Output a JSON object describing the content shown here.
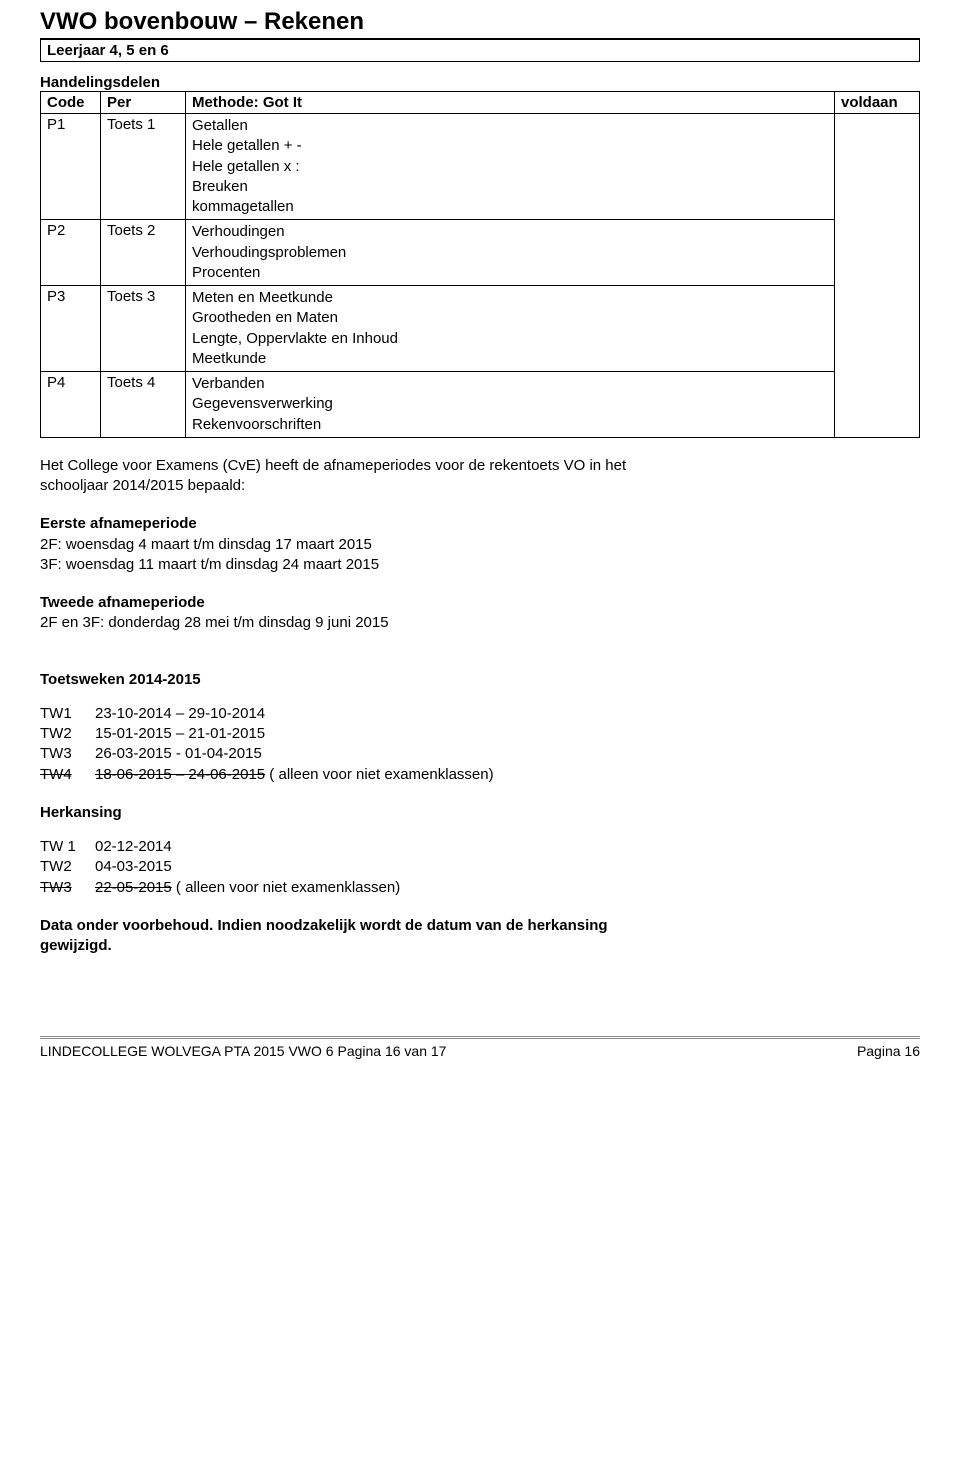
{
  "title": "VWO bovenbouw – Rekenen",
  "subtitle": "Leerjaar 4, 5 en 6",
  "handelingsdelen_heading": "Handelingsdelen",
  "table": {
    "headers": {
      "code": "Code",
      "per": "Per",
      "method": "Methode: Got It",
      "voldaan": "voldaan"
    },
    "rows": [
      {
        "code": "P1",
        "per": "Toets 1",
        "lines": [
          "Getallen",
          "Hele getallen + -",
          "Hele getallen x :",
          "Breuken",
          "kommagetallen"
        ]
      },
      {
        "code": "P2",
        "per": "Toets 2",
        "lines": [
          "Verhoudingen",
          "Verhoudingsproblemen",
          "Procenten"
        ]
      },
      {
        "code": "P3",
        "per": "Toets 3",
        "lines": [
          "Meten en Meetkunde",
          "Grootheden en Maten",
          "Lengte, Oppervlakte en Inhoud",
          "Meetkunde"
        ]
      },
      {
        "code": "P4",
        "per": "Toets 4",
        "lines": [
          "Verbanden",
          "Gegevensverwerking",
          "Rekenvoorschriften"
        ]
      }
    ]
  },
  "intro_para": [
    "Het College voor Examens (CvE) heeft de afnameperiodes voor de rekentoets VO in het",
    "schooljaar 2014/2015 bepaald:"
  ],
  "eerste": {
    "heading": "Eerste afnameperiode",
    "line1": "2F: woensdag 4 maart t/m dinsdag 17 maart 2015",
    "line2": "3F: woensdag 11 maart t/m dinsdag 24 maart 2015"
  },
  "tweede": {
    "heading": "Tweede afnameperiode",
    "line1": "2F en 3F: donderdag 28 mei t/m dinsdag 9 juni 2015"
  },
  "toetsweken": {
    "heading": "Toetsweken 2014-2015",
    "rows": [
      {
        "label": "TW1",
        "text": "23-10-2014 – 29-10-2014",
        "strike": false
      },
      {
        "label": "TW2",
        "text": "15-01-2015 – 21-01-2015",
        "strike": false
      },
      {
        "label": "TW3",
        "text": "26-03-2015 -  01-04-2015",
        "strike": false
      },
      {
        "label": "TW4",
        "text": "18-06-2015 – 24-06-2015",
        "strike": true,
        "suffix": " ( alleen voor niet examenklassen)"
      }
    ]
  },
  "herkansing": {
    "heading": "Herkansing",
    "rows": [
      {
        "label": "TW 1",
        "text": "02-12-2014",
        "strike": false
      },
      {
        "label": "TW2",
        "text": "04-03-2015",
        "strike": false
      },
      {
        "label": "TW3",
        "text": "22-05-2015",
        "strike": true,
        "suffix": " ( alleen voor niet examenklassen)"
      }
    ]
  },
  "disclaimer": [
    "Data onder voorbehoud. Indien noodzakelijk wordt de datum van de herkansing",
    "gewijzigd."
  ],
  "footer": {
    "left": "LINDECOLLEGE WOLVEGA PTA 2015 VWO 6 Pagina 16 van 17",
    "right": "Pagina 16"
  }
}
